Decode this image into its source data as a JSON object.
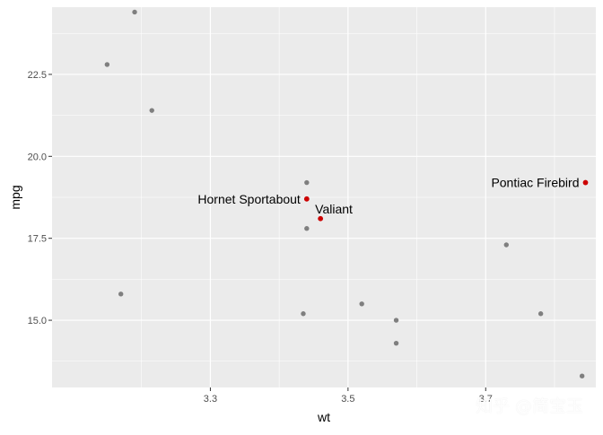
{
  "chart_data": {
    "type": "scatter",
    "xlabel": "wt",
    "ylabel": "mpg",
    "xlim": [
      3.07,
      3.86
    ],
    "ylim": [
      12.95,
      24.55
    ],
    "x_ticks": [
      3.3,
      3.5,
      3.7
    ],
    "x_tick_labels": [
      "3.3",
      "3.5",
      "3.7"
    ],
    "y_ticks": [
      15.0,
      17.5,
      20.0,
      22.5
    ],
    "y_tick_labels": [
      "15.0",
      "17.5",
      "20.0",
      "22.5"
    ],
    "grid": true,
    "colors": {
      "panel_bg": "#EBEBEB",
      "grid": "#FFFFFF",
      "point_default": "#7F7F7F",
      "point_highlight": "#CC0000",
      "text_axis": "#4D4D4D",
      "text_label": "#000000"
    },
    "points": [
      {
        "x": 3.15,
        "y": 22.8
      },
      {
        "x": 3.19,
        "y": 24.4
      },
      {
        "x": 3.215,
        "y": 21.4
      },
      {
        "x": 3.17,
        "y": 15.8
      },
      {
        "x": 3.44,
        "y": 19.2
      },
      {
        "x": 3.44,
        "y": 17.8
      },
      {
        "x": 3.435,
        "y": 15.2
      },
      {
        "x": 3.52,
        "y": 15.5
      },
      {
        "x": 3.57,
        "y": 15.0
      },
      {
        "x": 3.57,
        "y": 14.3
      },
      {
        "x": 3.73,
        "y": 17.3
      },
      {
        "x": 3.78,
        "y": 15.2
      },
      {
        "x": 3.84,
        "y": 13.3
      }
    ],
    "highlighted": [
      {
        "name": "Hornet Sportabout",
        "x": 3.44,
        "y": 18.7,
        "label_side": "left"
      },
      {
        "name": "Valiant",
        "x": 3.46,
        "y": 18.1,
        "label_side": "above-right"
      },
      {
        "name": "Pontiac Firebird",
        "x": 3.845,
        "y": 19.2,
        "label_side": "left"
      }
    ]
  },
  "watermark": "知乎 @简宝玉"
}
